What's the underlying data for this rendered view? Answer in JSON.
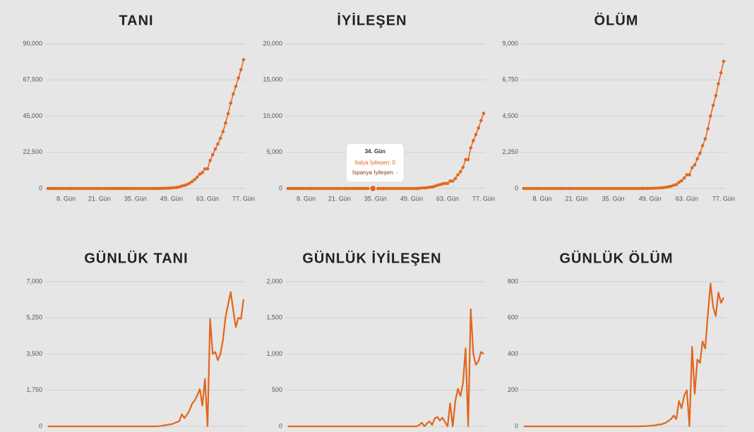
{
  "chart_data": [
    {
      "type": "line",
      "title": "TANI",
      "markers": true,
      "color": "#e2661d",
      "grid": true,
      "categories": [
        null,
        null,
        null,
        null,
        null,
        null,
        null,
        "8. Gün",
        null,
        null,
        null,
        null,
        null,
        null,
        null,
        null,
        null,
        null,
        null,
        null,
        "21. Gün",
        null,
        null,
        null,
        null,
        null,
        null,
        null,
        null,
        null,
        null,
        null,
        null,
        null,
        "35. Gün",
        null,
        null,
        null,
        null,
        null,
        null,
        null,
        null,
        null,
        null,
        null,
        null,
        null,
        "49. Gün",
        null,
        null,
        null,
        null,
        null,
        null,
        null,
        null,
        null,
        null,
        null,
        null,
        null,
        "63. Gün",
        null,
        null,
        null,
        null,
        null,
        null,
        null,
        null,
        null,
        null,
        null,
        null,
        null,
        "77. Gün"
      ],
      "values": [
        0,
        0,
        0,
        0,
        0,
        0,
        0,
        0,
        0,
        0,
        0,
        0,
        0,
        0,
        0,
        0,
        0,
        0,
        0,
        0,
        0,
        0,
        0,
        0,
        0,
        0,
        0,
        0,
        0,
        0,
        0,
        0,
        0,
        0,
        0,
        0,
        0,
        0,
        0,
        0,
        0,
        0,
        0,
        10,
        30,
        80,
        140,
        230,
        330,
        480,
        680,
        930,
        1510,
        1910,
        2470,
        3250,
        4350,
        5600,
        7100,
        8900,
        9900,
        12200,
        12200,
        17400,
        20900,
        24500,
        27700,
        31200,
        35400,
        40700,
        46600,
        53100,
        58700,
        63500,
        68750,
        73950,
        80100
      ],
      "ylim": [
        0,
        90000
      ],
      "yticks": [
        0,
        {
          "value": 22500,
          "label": "22,500"
        },
        {
          "value": 45000,
          "label": "45,000"
        },
        {
          "value": 67500,
          "label": "67,500"
        },
        {
          "value": 90000,
          "label": "90,000"
        }
      ]
    },
    {
      "type": "line",
      "title": "İYİLEŞEN",
      "markers": true,
      "color": "#e2661d",
      "grid": true,
      "categories": [
        null,
        null,
        null,
        null,
        null,
        null,
        null,
        "8. Gün",
        null,
        null,
        null,
        null,
        null,
        null,
        null,
        null,
        null,
        null,
        null,
        null,
        "21. Gün",
        null,
        null,
        null,
        null,
        null,
        null,
        null,
        null,
        null,
        null,
        null,
        null,
        null,
        "35. Gün",
        null,
        null,
        null,
        null,
        null,
        null,
        null,
        null,
        null,
        null,
        null,
        null,
        null,
        "49. Gün",
        null,
        null,
        null,
        null,
        null,
        null,
        null,
        null,
        null,
        null,
        null,
        null,
        null,
        "63. Gün",
        null,
        null,
        null,
        null,
        null,
        null,
        null,
        null,
        null,
        null,
        null,
        null,
        null,
        "77. Gün"
      ],
      "values": [
        0,
        0,
        0,
        0,
        0,
        0,
        0,
        0,
        0,
        0,
        0,
        0,
        0,
        0,
        0,
        0,
        0,
        0,
        0,
        0,
        0,
        0,
        0,
        0,
        0,
        0,
        0,
        0,
        0,
        0,
        0,
        0,
        0,
        0,
        0,
        0,
        0,
        0,
        0,
        0,
        0,
        0,
        0,
        0,
        0,
        0,
        0,
        0,
        0,
        0,
        0,
        20,
        70,
        70,
        110,
        180,
        200,
        310,
        440,
        520,
        640,
        700,
        700,
        1020,
        1020,
        1370,
        1890,
        2310,
        2910,
        3990,
        3990,
        5610,
        6610,
        7460,
        8360,
        9390,
        10390
      ],
      "ylim": [
        0,
        20000
      ],
      "yticks": [
        0,
        {
          "value": 5000,
          "label": "5,000"
        },
        {
          "value": 10000,
          "label": "10,000"
        },
        {
          "value": 15000,
          "label": "15,000"
        },
        {
          "value": 20000,
          "label": "20,000"
        }
      ],
      "tooltip": {
        "title": "34. Gün",
        "lines": [
          "İtalya İyileşen: 0",
          "İspanya İyileşen: -"
        ]
      }
    },
    {
      "type": "line",
      "title": "ÖLÜM",
      "markers": true,
      "color": "#e2661d",
      "grid": true,
      "categories": [
        null,
        null,
        null,
        null,
        null,
        null,
        null,
        "8. Gün",
        null,
        null,
        null,
        null,
        null,
        null,
        null,
        null,
        null,
        null,
        null,
        null,
        "21. Gün",
        null,
        null,
        null,
        null,
        null,
        null,
        null,
        null,
        null,
        null,
        null,
        null,
        null,
        "35. Gün",
        null,
        null,
        null,
        null,
        null,
        null,
        null,
        null,
        null,
        null,
        null,
        null,
        null,
        "49. Gün",
        null,
        null,
        null,
        null,
        null,
        null,
        null,
        null,
        null,
        null,
        null,
        null,
        null,
        "63. Gün",
        null,
        null,
        null,
        null,
        null,
        null,
        null,
        null,
        null,
        null,
        null,
        null,
        null,
        "77. Gün"
      ],
      "values": [
        0,
        0,
        0,
        0,
        0,
        0,
        0,
        0,
        0,
        0,
        0,
        0,
        0,
        0,
        0,
        0,
        0,
        0,
        0,
        0,
        0,
        0,
        0,
        0,
        0,
        0,
        0,
        0,
        0,
        0,
        0,
        0,
        0,
        0,
        0,
        0,
        0,
        0,
        0,
        0,
        0,
        0,
        0,
        0,
        0,
        1,
        2,
        4,
        7,
        12,
        17,
        27,
        37,
        52,
        72,
        102,
        142,
        202,
        242,
        382,
        482,
        652,
        852,
        852,
        1292,
        1472,
        1842,
        2192,
        2662,
        3092,
        3712,
        4502,
        5162,
        5772,
        6512,
        7195,
        7907
      ],
      "ylim": [
        0,
        9000
      ],
      "yticks": [
        0,
        {
          "value": 2250,
          "label": "2,250"
        },
        {
          "value": 4500,
          "label": "4,500"
        },
        {
          "value": 6750,
          "label": "6,750"
        },
        {
          "value": 9000,
          "label": "9,000"
        }
      ]
    },
    {
      "type": "line",
      "title": "GÜNLÜK TANI",
      "markers": false,
      "color": "#e2661d",
      "grid": true,
      "values": [
        0,
        0,
        0,
        0,
        0,
        0,
        0,
        0,
        0,
        0,
        0,
        0,
        0,
        0,
        0,
        0,
        0,
        0,
        0,
        0,
        0,
        0,
        0,
        0,
        0,
        0,
        0,
        0,
        0,
        0,
        0,
        0,
        0,
        0,
        0,
        0,
        0,
        0,
        0,
        0,
        0,
        0,
        0,
        10,
        20,
        50,
        60,
        90,
        100,
        150,
        200,
        250,
        580,
        400,
        560,
        780,
        1100,
        1250,
        1500,
        1800,
        1000,
        2300,
        0,
        5200,
        3500,
        3600,
        3200,
        3500,
        4200,
        5300,
        5900,
        6500,
        5600,
        4800,
        5250,
        5200,
        6150
      ],
      "ylim": [
        0,
        7000
      ],
      "yticks": [
        0,
        {
          "value": 1750,
          "label": "1,750"
        },
        {
          "value": 3500,
          "label": "3,500"
        },
        {
          "value": 5250,
          "label": "5,250"
        },
        {
          "value": 7000,
          "label": "7,000"
        }
      ]
    },
    {
      "type": "line",
      "title": "GÜNLÜK İYİLEŞEN",
      "markers": false,
      "color": "#e2661d",
      "grid": true,
      "values": [
        0,
        0,
        0,
        0,
        0,
        0,
        0,
        0,
        0,
        0,
        0,
        0,
        0,
        0,
        0,
        0,
        0,
        0,
        0,
        0,
        0,
        0,
        0,
        0,
        0,
        0,
        0,
        0,
        0,
        0,
        0,
        0,
        0,
        0,
        0,
        0,
        0,
        0,
        0,
        0,
        0,
        0,
        0,
        0,
        0,
        0,
        0,
        0,
        0,
        0,
        0,
        20,
        50,
        0,
        40,
        70,
        20,
        110,
        130,
        80,
        120,
        60,
        0,
        320,
        0,
        350,
        520,
        420,
        600,
        1080,
        0,
        1620,
        1000,
        850,
        900,
        1030,
        1000
      ],
      "ylim": [
        0,
        2000
      ],
      "yticks": [
        0,
        500,
        {
          "value": 1000,
          "label": "1,000"
        },
        {
          "value": 1500,
          "label": "1,500"
        },
        {
          "value": 2000,
          "label": "2,000"
        }
      ]
    },
    {
      "type": "line",
      "title": "GÜNLÜK ÖLÜM",
      "markers": false,
      "color": "#e2661d",
      "grid": true,
      "values": [
        0,
        0,
        0,
        0,
        0,
        0,
        0,
        0,
        0,
        0,
        0,
        0,
        0,
        0,
        0,
        0,
        0,
        0,
        0,
        0,
        0,
        0,
        0,
        0,
        0,
        0,
        0,
        0,
        0,
        0,
        0,
        0,
        0,
        0,
        0,
        0,
        0,
        0,
        0,
        0,
        0,
        0,
        0,
        0,
        0,
        1,
        1,
        2,
        3,
        5,
        5,
        10,
        10,
        15,
        20,
        30,
        40,
        60,
        40,
        140,
        100,
        170,
        200,
        0,
        440,
        180,
        370,
        350,
        470,
        430,
        620,
        790,
        660,
        610,
        740,
        683,
        712
      ],
      "ylim": [
        0,
        800
      ],
      "yticks": [
        0,
        200,
        400,
        600,
        800
      ]
    }
  ]
}
